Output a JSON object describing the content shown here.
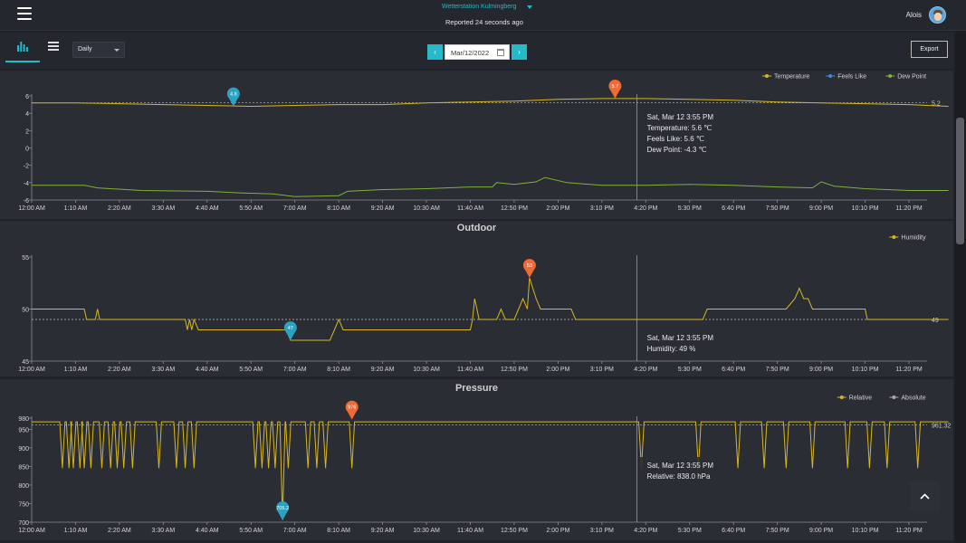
{
  "header": {
    "station_name": "Wetterstation Kulmingberg",
    "reported": "Reported 24 seconds ago",
    "user_name": "Alois"
  },
  "toolbar": {
    "period": "Daily",
    "date": "Mar/12/2022",
    "prev": "‹",
    "next": "›",
    "export_label": "Export"
  },
  "x_ticks": [
    "12:00 AM",
    "1:10 AM",
    "2:20 AM",
    "3:30 AM",
    "4:40 AM",
    "5:50 AM",
    "7:00 AM",
    "8:10 AM",
    "9:20 AM",
    "10:30 AM",
    "11:40 AM",
    "12:50 PM",
    "2:00 PM",
    "3:10 PM",
    "4:20 PM",
    "5:30 PM",
    "6:40 PM",
    "7:50 PM",
    "9:00 PM",
    "10:10 PM",
    "11:20 PM"
  ],
  "colors": {
    "accent": "#26b9c9",
    "temperature": "#d8b623",
    "feels_like": "#3b8de0",
    "dew_point": "#7fb23a",
    "humidity": "#d8b623",
    "relative": "#d8b623",
    "absolute": "#aaaaaa",
    "max_marker": "#f06a35",
    "min_marker": "#2aa3c2"
  },
  "chart_data": [
    {
      "id": "temperature",
      "type": "line",
      "title": "",
      "ylim": [
        -6,
        6
      ],
      "yticks": [
        "6",
        "4",
        "2",
        "0",
        "-2",
        "-4",
        "-6"
      ],
      "ytick_values": [
        6,
        4,
        2,
        0,
        -2,
        -4,
        -6
      ],
      "avg": 5.2,
      "avg_label": "5.2",
      "legend": [
        "Temperature",
        "Feels Like",
        "Dew Point"
      ],
      "series": [
        {
          "name": "Temperature",
          "color": "#d8b623",
          "points": [
            [
              0,
              5.2
            ],
            [
              1,
              5.2
            ],
            [
              2,
              5.1
            ],
            [
              3,
              5.0
            ],
            [
              4,
              4.9
            ],
            [
              5,
              4.8
            ],
            [
              6,
              4.9
            ],
            [
              7,
              5.0
            ],
            [
              8,
              5.0
            ],
            [
              9,
              5.2
            ],
            [
              10,
              5.3
            ],
            [
              11,
              5.4
            ],
            [
              12,
              5.6
            ],
            [
              13,
              5.7
            ],
            [
              14,
              5.7
            ],
            [
              15,
              5.6
            ],
            [
              16,
              5.5
            ],
            [
              17,
              5.3
            ],
            [
              18,
              5.2
            ],
            [
              19,
              5.1
            ],
            [
              20,
              5.0
            ],
            [
              20.9,
              4.8
            ]
          ]
        },
        {
          "name": "Feels Like",
          "color": "#3b8de0",
          "points": [
            [
              0,
              5.2
            ],
            [
              1,
              5.2
            ],
            [
              2,
              5.1
            ],
            [
              3,
              5.0
            ],
            [
              4,
              4.9
            ],
            [
              5,
              4.8
            ],
            [
              6,
              4.9
            ],
            [
              7,
              5.0
            ],
            [
              8,
              5.0
            ],
            [
              9,
              5.2
            ],
            [
              10,
              5.3
            ],
            [
              11,
              5.4
            ],
            [
              12,
              5.6
            ],
            [
              13,
              5.7
            ],
            [
              14,
              5.7
            ],
            [
              15,
              5.6
            ],
            [
              16,
              5.5
            ],
            [
              17,
              5.3
            ],
            [
              18,
              5.2
            ],
            [
              19,
              5.1
            ],
            [
              20,
              5.0
            ],
            [
              20.9,
              4.8
            ]
          ]
        },
        {
          "name": "Dew Point",
          "color": "#7fb23a",
          "points": [
            [
              0,
              -4.3
            ],
            [
              1.2,
              -4.3
            ],
            [
              1.5,
              -4.6
            ],
            [
              2.5,
              -4.9
            ],
            [
              4,
              -5.0
            ],
            [
              4.8,
              -5.2
            ],
            [
              5.5,
              -5.3
            ],
            [
              6,
              -5.6
            ],
            [
              7,
              -5.5
            ],
            [
              7.2,
              -5.0
            ],
            [
              8,
              -4.8
            ],
            [
              9,
              -4.7
            ],
            [
              10,
              -4.5
            ],
            [
              10.5,
              -4.5
            ],
            [
              10.6,
              -4.0
            ],
            [
              11,
              -4.2
            ],
            [
              11.5,
              -3.9
            ],
            [
              11.7,
              -3.4
            ],
            [
              12.2,
              -4.0
            ],
            [
              13,
              -4.3
            ],
            [
              14,
              -4.3
            ],
            [
              15,
              -4.2
            ],
            [
              16,
              -4.3
            ],
            [
              17,
              -4.5
            ],
            [
              17.8,
              -4.6
            ],
            [
              18,
              -3.9
            ],
            [
              18.3,
              -4.4
            ],
            [
              19,
              -4.7
            ],
            [
              20,
              -4.9
            ],
            [
              20.9,
              -4.9
            ]
          ]
        }
      ],
      "max_marker": {
        "x": 13.3,
        "y": 5.7,
        "label": "5.7"
      },
      "min_marker": {
        "x": 4.6,
        "y": 4.8,
        "label": "4.8"
      },
      "crosshair_x": 13.8,
      "tooltip": [
        "Sat, Mar 12 3:55 PM",
        "Temperature: 5.6 ℃",
        "Feels Like: 5.6 ℃",
        "Dew Point: -4.3 ℃"
      ]
    },
    {
      "id": "humidity",
      "type": "line",
      "title": "Outdoor",
      "ylim": [
        45,
        55
      ],
      "yticks": [
        "55",
        "50",
        "45"
      ],
      "ytick_values": [
        55,
        50,
        45
      ],
      "avg": 49,
      "avg_label": "49",
      "legend": [
        "Humidity"
      ],
      "series": [
        {
          "name": "Humidity",
          "color": "#d8b623",
          "points": [
            [
              0,
              50
            ],
            [
              1.2,
              50
            ],
            [
              1.25,
              49
            ],
            [
              1.45,
              49
            ],
            [
              1.5,
              50
            ],
            [
              1.55,
              49
            ],
            [
              3.5,
              49
            ],
            [
              3.55,
              48
            ],
            [
              3.6,
              49
            ],
            [
              3.65,
              48
            ],
            [
              3.7,
              49
            ],
            [
              3.8,
              48
            ],
            [
              5.8,
              48
            ],
            [
              5.9,
              47
            ],
            [
              6.8,
              47
            ],
            [
              7,
              49
            ],
            [
              7.1,
              48
            ],
            [
              10,
              48
            ],
            [
              10.05,
              49
            ],
            [
              10.1,
              51
            ],
            [
              10.15,
              50
            ],
            [
              10.2,
              49
            ],
            [
              10.6,
              49
            ],
            [
              10.7,
              50
            ],
            [
              10.8,
              49
            ],
            [
              11,
              49
            ],
            [
              11.1,
              50
            ],
            [
              11.2,
              51
            ],
            [
              11.3,
              50
            ],
            [
              11.35,
              53
            ],
            [
              11.5,
              51
            ],
            [
              11.6,
              50
            ],
            [
              12.3,
              50
            ],
            [
              12.4,
              49
            ],
            [
              15.3,
              49
            ],
            [
              15.4,
              50
            ],
            [
              17.2,
              50
            ],
            [
              17.4,
              51
            ],
            [
              17.5,
              52
            ],
            [
              17.6,
              51
            ],
            [
              17.7,
              51
            ],
            [
              17.8,
              50
            ],
            [
              19,
              50
            ],
            [
              19.05,
              49
            ],
            [
              20.9,
              49
            ]
          ]
        }
      ],
      "max_marker": {
        "x": 11.35,
        "y": 53,
        "label": "53"
      },
      "min_marker": {
        "x": 5.9,
        "y": 47,
        "label": "47"
      },
      "crosshair_x": 13.8,
      "tooltip": [
        "Sat, Mar 12 3:55 PM",
        "Humidity: 49 %"
      ]
    },
    {
      "id": "pressure",
      "type": "line",
      "title": "Pressure",
      "ylim": [
        700,
        980
      ],
      "yticks": [
        "980",
        "950",
        "900",
        "850",
        "800",
        "750",
        "700"
      ],
      "ytick_values": [
        980,
        950,
        900,
        850,
        800,
        750,
        700
      ],
      "avg": 961.32,
      "avg_label": "961.32",
      "legend": [
        "Relative",
        "Absolute"
      ],
      "series": [
        {
          "name": "Relative",
          "color": "#d8b623",
          "drops": [
            0.7,
            0.85,
            0.95,
            1.1,
            1.2,
            1.35,
            1.6,
            1.8,
            1.95,
            2.1,
            2.3,
            2.9,
            3.3,
            3.5,
            3.7,
            5.1,
            5.25,
            5.4,
            5.55,
            5.72,
            5.85,
            6.3,
            6.5,
            6.7,
            7.3,
            13.9,
            15.2,
            16.1,
            16.7,
            17.2,
            17.8,
            18.6,
            19.1,
            19.5,
            20.2
          ],
          "base": 970,
          "drop_value": 845,
          "min": {
            "x": 5.72,
            "y": 705.2
          },
          "max": {
            "x": 7.3,
            "y": 976
          }
        }
      ],
      "max_marker": {
        "x": 7.3,
        "y": 976,
        "label": "976"
      },
      "min_marker": {
        "x": 5.72,
        "y": 705.2,
        "label": "705.2"
      },
      "crosshair_x": 13.8,
      "tooltip": [
        "Sat, Mar 12 3:55 PM",
        "Relative: 838.0 hPa"
      ]
    }
  ]
}
